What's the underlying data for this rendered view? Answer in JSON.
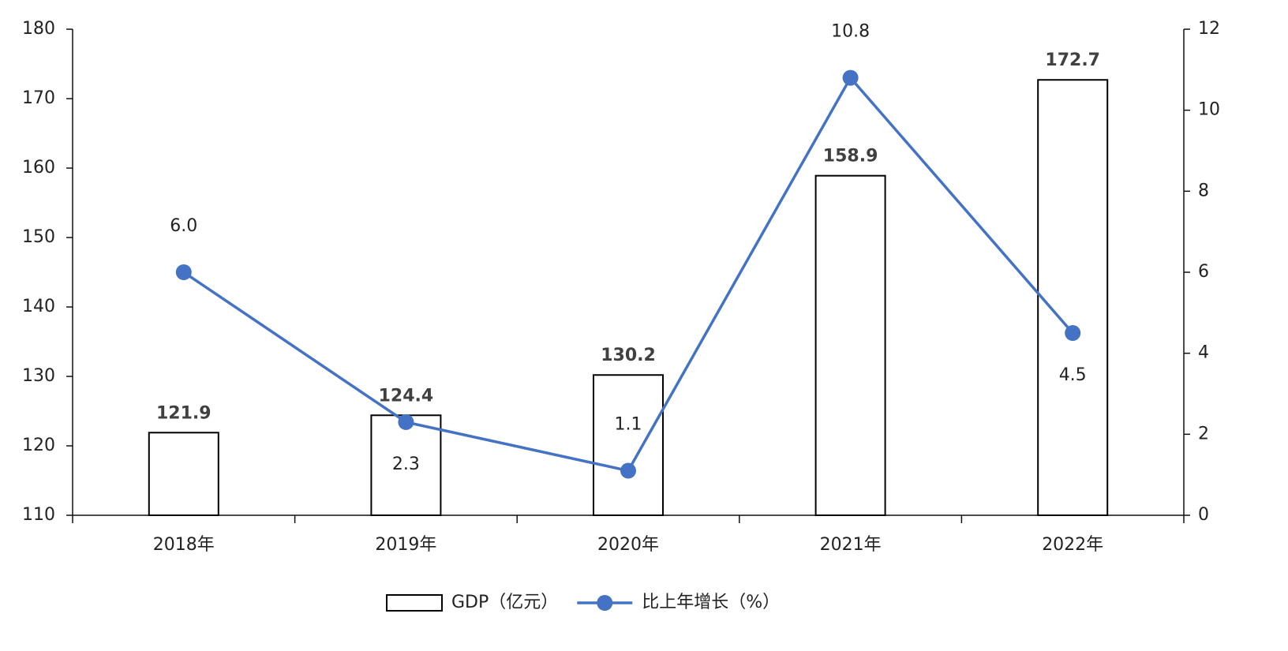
{
  "chart_data": {
    "type": "combo",
    "categories": [
      "2018年",
      "2019年",
      "2020年",
      "2021年",
      "2022年"
    ],
    "series": [
      {
        "name": "GDP（亿元）",
        "type": "bar",
        "color": "#ffffff",
        "values": [
          121.9,
          124.4,
          130.2,
          158.9,
          172.7
        ]
      },
      {
        "name": "比上年增长（%）",
        "type": "line",
        "axis": "y2",
        "color": "#4472c4",
        "values": [
          6.0,
          2.3,
          1.1,
          10.8,
          4.5
        ],
        "value_labels": [
          "6.0",
          "2.3",
          "1.1",
          "10.8",
          "4.5"
        ]
      }
    ],
    "ylim": [
      110,
      180
    ],
    "yticks": [
      110,
      120,
      130,
      140,
      150,
      160,
      170,
      180
    ],
    "y2lim": [
      0,
      12
    ],
    "y2ticks": [
      0,
      2,
      4,
      6,
      8,
      10,
      12
    ],
    "grid": false,
    "legend": "bottom"
  }
}
